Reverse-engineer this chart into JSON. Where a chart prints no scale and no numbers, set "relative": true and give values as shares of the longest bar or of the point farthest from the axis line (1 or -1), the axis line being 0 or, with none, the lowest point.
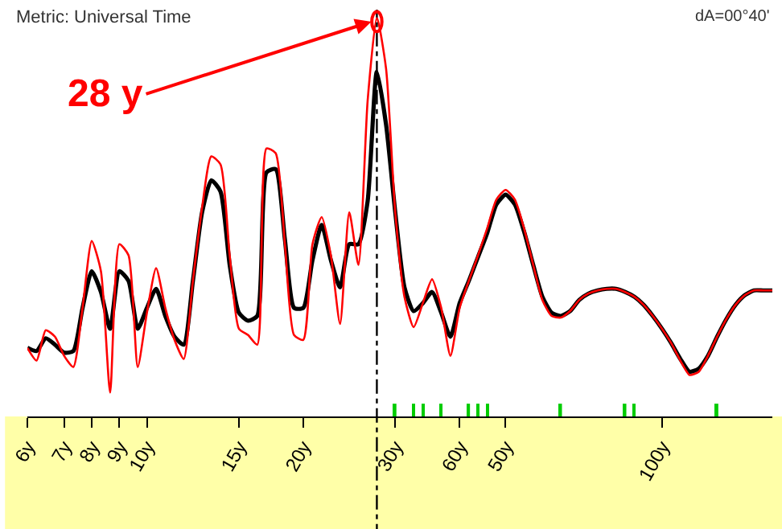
{
  "chart_data": {
    "type": "line",
    "relative": true,
    "legend": false,
    "marker": "none",
    "line_style": "solid",
    "title": "Metric: Universal Time",
    "annotations": [
      "dA=00°40'",
      "28 y"
    ],
    "categories": [
      "6y",
      null,
      null,
      null,
      "7y",
      null,
      null,
      "8y",
      null,
      null,
      "9y",
      null,
      null,
      "10y",
      null,
      null,
      null,
      null,
      null,
      null,
      null,
      null,
      null,
      "15y",
      null,
      null,
      null,
      null,
      null,
      null,
      "20y",
      null,
      null,
      null,
      null,
      null,
      null,
      null,
      null,
      null,
      "30y",
      null,
      null,
      null,
      null,
      null,
      null,
      "60y",
      null,
      null,
      null,
      null,
      "50y",
      null,
      null,
      null,
      null,
      null,
      null,
      null,
      null,
      null,
      null,
      null,
      null,
      null,
      null,
      null,
      null,
      "100y",
      null,
      null,
      null,
      null,
      null,
      null,
      null,
      null,
      null,
      null,
      null,
      null
    ],
    "series": [
      {
        "color": "#ff0000",
        "values": [
          0.172,
          0.14,
          0.216,
          0.2,
          0.152,
          0.124,
          0.272,
          0.44,
          0.364,
          0.06,
          0.432,
          0.404,
          0.124,
          0.26,
          0.372,
          0.272,
          0.192,
          0.144,
          0.34,
          0.524,
          0.652,
          0.632,
          0.404,
          0.22,
          0.204,
          0.18,
          0.672,
          0.66,
          0.432,
          0.204,
          0.192,
          0.432,
          0.5,
          0.404,
          0.232,
          0.512,
          0.38,
          0.792,
          1.0,
          0.872,
          0.512,
          0.3,
          0.224,
          0.284,
          0.344,
          0.272,
          0.152,
          0.272,
          0.34,
          0.404,
          0.472,
          0.544,
          0.568,
          0.544,
          0.472,
          0.38,
          0.292,
          0.252,
          0.248,
          0.264,
          0.292,
          0.308,
          0.316,
          0.32,
          0.32,
          0.312,
          0.3,
          0.28,
          0.252,
          0.22,
          0.184,
          0.14,
          0.104,
          0.112,
          0.152,
          0.2,
          0.244,
          0.28,
          0.304,
          0.316,
          0.316,
          0.316
        ]
      },
      {
        "color": "#000000",
        "values": [
          0.172,
          0.164,
          0.196,
          0.18,
          0.16,
          0.164,
          0.272,
          0.364,
          0.312,
          0.22,
          0.364,
          0.34,
          0.22,
          0.272,
          0.32,
          0.252,
          0.2,
          0.18,
          0.34,
          0.512,
          0.592,
          0.564,
          0.38,
          0.26,
          0.24,
          0.252,
          0.612,
          0.62,
          0.444,
          0.272,
          0.272,
          0.392,
          0.48,
          0.392,
          0.324,
          0.432,
          0.432,
          0.54,
          0.864,
          0.732,
          0.512,
          0.324,
          0.264,
          0.284,
          0.312,
          0.26,
          0.2,
          0.284,
          0.34,
          0.4,
          0.46,
          0.532,
          0.556,
          0.532,
          0.464,
          0.38,
          0.3,
          0.26,
          0.252,
          0.264,
          0.292,
          0.308,
          0.316,
          0.32,
          0.32,
          0.312,
          0.3,
          0.28,
          0.252,
          0.22,
          0.184,
          0.144,
          0.112,
          0.12,
          0.152,
          0.2,
          0.244,
          0.28,
          0.304,
          0.316,
          0.316,
          0.316
        ]
      },
      {
        "type": "bar",
        "color": "#00cc00",
        "values": [
          null,
          null,
          null,
          null,
          null,
          null,
          null,
          null,
          null,
          null,
          null,
          null,
          null,
          null,
          null,
          null,
          null,
          null,
          null,
          null,
          null,
          null,
          null,
          null,
          null,
          null,
          null,
          null,
          null,
          null,
          null,
          null,
          null,
          null,
          null,
          null,
          null,
          null,
          null,
          null,
          0.032,
          null,
          0.032,
          0.032,
          null,
          0.032,
          null,
          null,
          0.032,
          0.032,
          0.032,
          null,
          null,
          null,
          null,
          null,
          null,
          null,
          0.032,
          null,
          null,
          null,
          null,
          null,
          null,
          0.032,
          0.032,
          null,
          null,
          null,
          null,
          null,
          null,
          null,
          null,
          0.032,
          null,
          null,
          null,
          null,
          null,
          null
        ]
      }
    ]
  }
}
